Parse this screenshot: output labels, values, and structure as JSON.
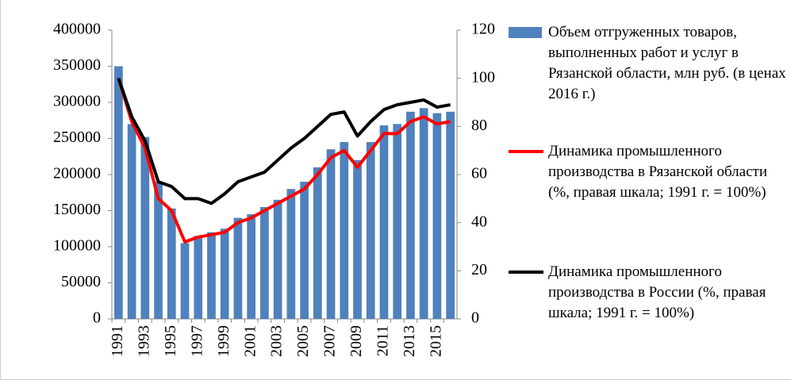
{
  "chart_data": {
    "type": "bar-line",
    "categories": [
      "1991",
      null,
      "1993",
      null,
      "1995",
      null,
      "1997",
      null,
      "1999",
      null,
      "2001",
      null,
      "2003",
      null,
      "2005",
      null,
      "2007",
      null,
      "2009",
      null,
      "2011",
      null,
      "2013",
      null,
      "2015",
      null
    ],
    "series": [
      {
        "name": "Объем отгруженных товаров, выполненных работ и услуг в Рязанской области, млн руб. (в ценах 2016 г.)",
        "type": "bar",
        "color": "#4f81bd",
        "axis": "y",
        "values": [
          350000,
          270000,
          252000,
          190000,
          153000,
          105000,
          115000,
          120000,
          125000,
          140000,
          145000,
          155000,
          165000,
          180000,
          190000,
          210000,
          235000,
          245000,
          220000,
          245000,
          268000,
          270000,
          287000,
          292000,
          285000,
          287000
        ]
      },
      {
        "name": "Динамика промышленного производства в Рязанской области (%, правая шкала; 1991 г. = 100%)",
        "type": "line",
        "color": "#ff0000",
        "axis": "y2",
        "values": [
          100,
          82,
          71,
          50,
          45,
          32,
          34,
          35,
          36,
          40,
          42,
          45,
          48,
          51,
          54,
          60,
          67,
          70,
          63,
          70,
          77,
          77,
          82,
          84,
          81,
          82
        ]
      },
      {
        "name": "Динамика промышленного производства в России (%, правая шкала; 1991 г. = 100%)",
        "type": "line",
        "color": "#000000",
        "axis": "y2",
        "values": [
          100,
          84,
          74,
          57,
          55,
          50,
          50,
          48,
          52,
          57,
          59,
          61,
          66,
          71,
          75,
          80,
          85,
          86,
          76,
          82,
          87,
          89,
          90,
          91,
          88,
          89
        ]
      }
    ],
    "ylim": [
      0,
      400000
    ],
    "yticks": [
      0,
      50000,
      100000,
      150000,
      200000,
      250000,
      300000,
      350000,
      400000
    ],
    "y2lim": [
      0,
      120
    ],
    "y2ticks": [
      0,
      20,
      40,
      60,
      80,
      100,
      120
    ],
    "legend": "right"
  }
}
